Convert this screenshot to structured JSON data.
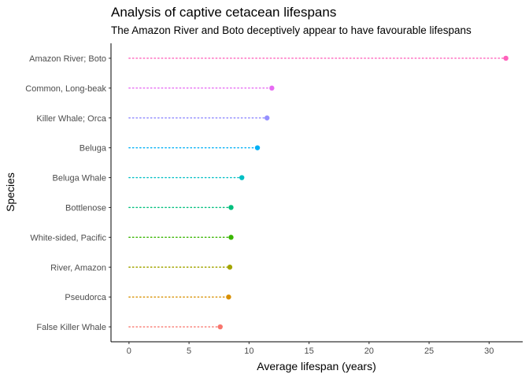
{
  "chart_data": {
    "type": "lollipop",
    "title": "Analysis of captive cetacean lifespans",
    "subtitle": "The Amazon River and Boto deceptively appear to have favourable lifespans",
    "xlabel": "Average lifespan (years)",
    "ylabel": "Species",
    "xlim": [
      -1.5,
      32.8
    ],
    "xticks": [
      0,
      5,
      10,
      15,
      20,
      25,
      30
    ],
    "grid": false,
    "legend": "none",
    "categories": [
      "False Killer Whale",
      "Pseudorca",
      "River, Amazon",
      "White-sided, Pacific",
      "Bottlenose",
      "Beluga Whale",
      "Beluga",
      "Killer Whale; Orca",
      "Common, Long-beak",
      "Amazon River; Boto"
    ],
    "values": [
      7.6,
      8.3,
      8.4,
      8.5,
      8.5,
      9.4,
      10.7,
      11.5,
      11.9,
      31.4
    ],
    "colors": [
      "#F8766D",
      "#D89000",
      "#A3A500",
      "#39B600",
      "#00BF7D",
      "#00BFC4",
      "#00B0F6",
      "#9590FF",
      "#E76BF3",
      "#FF62BC"
    ]
  }
}
